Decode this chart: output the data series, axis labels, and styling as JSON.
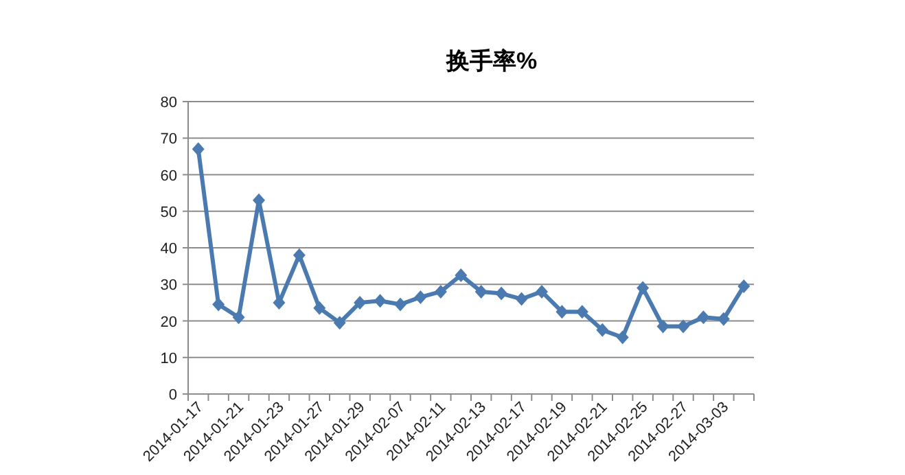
{
  "chart_data": {
    "type": "line",
    "title": "换手率%",
    "categories": [
      "2014-01-17",
      null,
      "2014-01-21",
      null,
      "2014-01-23",
      null,
      "2014-01-27",
      null,
      "2014-01-29",
      null,
      "2014-02-07",
      null,
      "2014-02-11",
      null,
      "2014-02-13",
      null,
      "2014-02-17",
      null,
      "2014-02-19",
      null,
      "2014-02-21",
      null,
      "2014-02-25",
      null,
      "2014-02-27",
      null,
      "2014-03-03",
      null
    ],
    "series": [
      {
        "color": "#4a7ab0",
        "values": [
          67,
          24.5,
          21,
          53,
          25,
          38,
          23.5,
          19.5,
          25,
          25.5,
          24.5,
          26.5,
          28,
          32.5,
          28,
          27.5,
          26,
          28,
          22.5,
          22.5,
          17.5,
          15.5,
          29,
          18.5,
          18.5,
          21,
          20.5,
          29.5
        ]
      }
    ],
    "ylim": [
      0,
      80
    ],
    "yticks": [
      0,
      10,
      20,
      30,
      40,
      50,
      60,
      70,
      80
    ],
    "grid": "y",
    "marker": "diamond",
    "line_style": "solid"
  }
}
